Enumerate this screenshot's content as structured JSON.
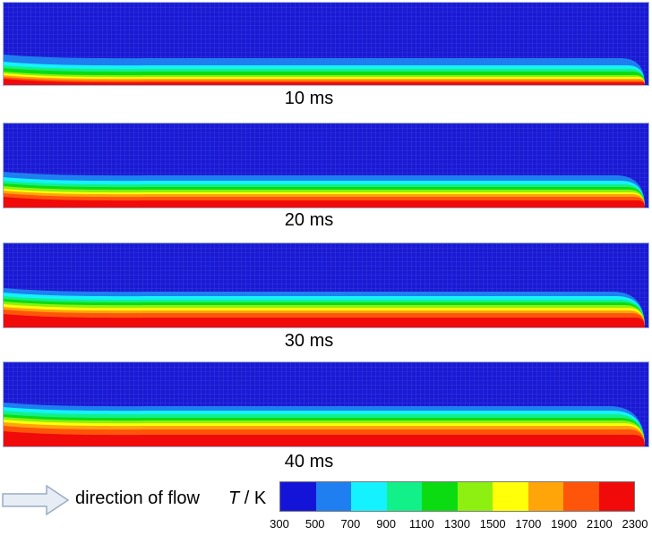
{
  "panels": [
    {
      "caption": "10 ms"
    },
    {
      "caption": "20 ms"
    },
    {
      "caption": "30 ms"
    },
    {
      "caption": "40 ms"
    }
  ],
  "legend": {
    "flow_label": "direction of flow",
    "quantity_symbol": "T",
    "unit_text": " / K",
    "ticks": [
      "300",
      "500",
      "700",
      "900",
      "1100",
      "1300",
      "1500",
      "1700",
      "1900",
      "2100",
      "2300"
    ],
    "colors": [
      "#1414d8",
      "#1f7ff0",
      "#15f2ff",
      "#12f08a",
      "#0bdc12",
      "#8ef010",
      "#ffff0a",
      "#ffa50a",
      "#ff550a",
      "#f00a0a"
    ]
  },
  "colors": {
    "mesh_background": "#1a1ad4",
    "mesh_line": "#4a4ae6",
    "panel_border": "#9fb6d6",
    "arrow_fill": "#e6edf5",
    "arrow_stroke": "#9aabc4"
  }
}
